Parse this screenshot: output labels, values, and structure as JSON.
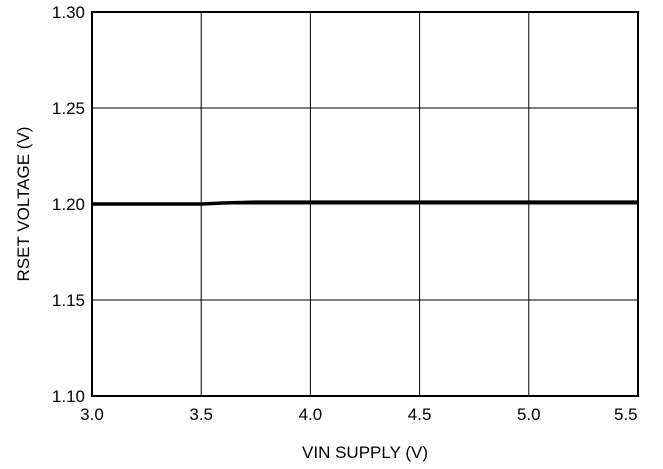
{
  "chart_data": {
    "type": "line",
    "title": "",
    "xlabel": "VIN SUPPLY (V)",
    "ylabel": "RSET VOLTAGE (V)",
    "xlim": [
      3.0,
      5.5
    ],
    "ylim": [
      1.1,
      1.3
    ],
    "x_ticks": [
      "3.0",
      "3.5",
      "4.0",
      "4.5",
      "5.0",
      "5.5"
    ],
    "y_ticks": [
      "1.30",
      "1.25",
      "1.20",
      "1.15",
      "1.10"
    ],
    "grid": true,
    "series": [
      {
        "x": [
          3.0,
          3.5,
          3.6,
          3.75,
          4.0,
          4.5,
          5.0,
          5.5
        ],
        "y": [
          1.2,
          1.2,
          1.2005,
          1.201,
          1.201,
          1.201,
          1.201,
          1.201
        ],
        "color": "#000000"
      }
    ]
  }
}
